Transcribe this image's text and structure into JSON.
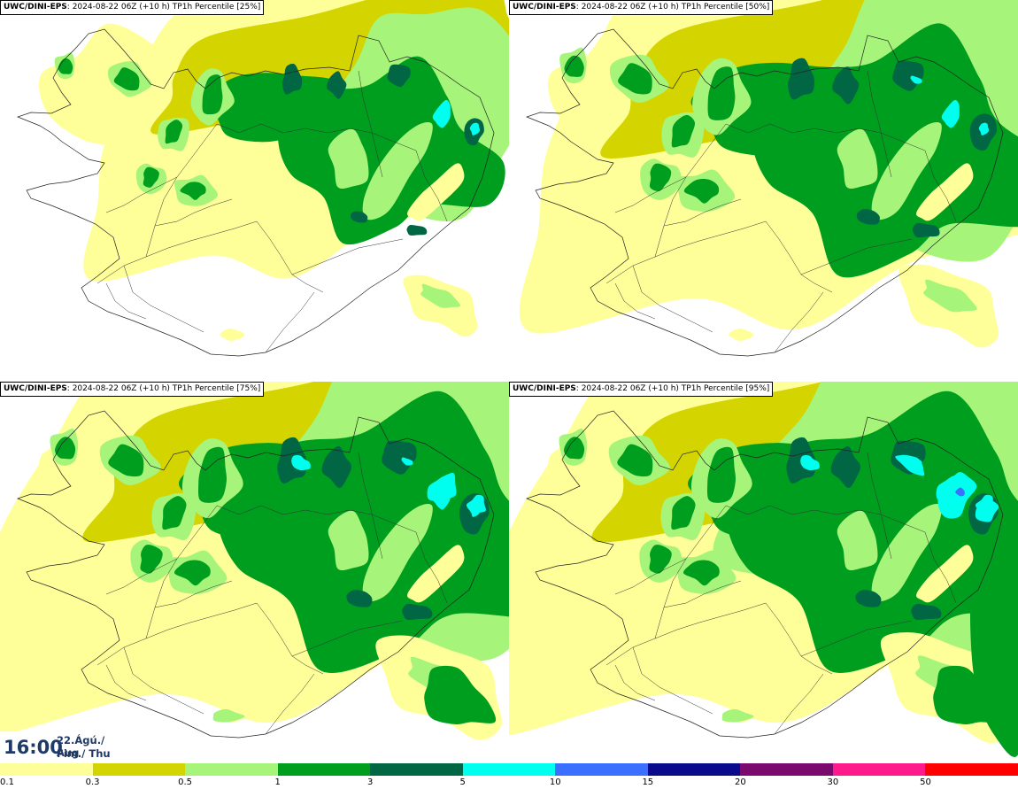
{
  "panels": [
    {
      "model": "UWC/DINI-EPS",
      "run": ": 2024-08-22 06Z (+10 h)",
      "field": "TP1h Percentile [25%]",
      "level": 1
    },
    {
      "model": "UWC/DINI-EPS",
      "run": ": 2024-08-22 06Z (+10 h)",
      "field": "TP1h Percentile [50%]",
      "level": 2
    },
    {
      "model": "UWC/DINI-EPS",
      "run": ": 2024-08-22 06Z (+10 h)",
      "field": "TP1h Percentile [75%]",
      "level": 3
    },
    {
      "model": "UWC/DINI-EPS",
      "run": ": 2024-08-22 06Z (+10 h)",
      "field": "TP1h Percentile [95%]",
      "level": 4
    }
  ],
  "timestamp": {
    "time": "16:00",
    "date_line1": "22.Ágú./ Aug",
    "date_line2": "Fim./ Thu"
  },
  "legend": {
    "ticks": [
      "0.1",
      "0.3",
      "0.5",
      "1",
      "3",
      "5",
      "10",
      "15",
      "20",
      "30",
      "50"
    ],
    "colors": [
      "#ffff99",
      "#d4d400",
      "#a6f57a",
      "#009e1e",
      "#006644",
      "#00ffee",
      "#3a6fff",
      "#0a0a8c",
      "#7a0a6e",
      "#ff1a8c",
      "#ff0000"
    ]
  },
  "colors": {
    "light_yellow": "#ffff99",
    "olive": "#d4d400",
    "light_green": "#a6f57a",
    "green": "#009e1e",
    "dark_green": "#006644",
    "cyan": "#00ffee",
    "blue": "#3a6fff"
  }
}
